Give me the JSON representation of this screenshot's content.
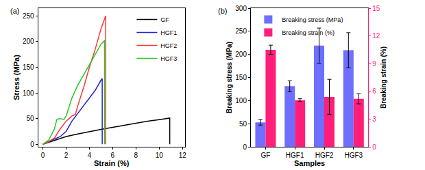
{
  "chart_data": [
    {
      "type": "line",
      "title": "(a)",
      "x_label": "Strain (%)",
      "y_label": "Stress (MPa)",
      "xlim": [
        -0.4,
        12.2
      ],
      "xticks": [
        0,
        2,
        4,
        6,
        8,
        10,
        12
      ],
      "ylim": [
        -5,
        265
      ],
      "yticks": [
        0,
        50,
        100,
        150,
        200,
        250
      ],
      "legend": "upper right",
      "series": [
        {
          "name": "GF",
          "color": "#000000",
          "x": [
            0,
            1,
            2,
            3,
            4,
            5,
            6,
            7,
            8,
            9,
            10,
            10.9,
            10.9
          ],
          "values": [
            0,
            8,
            15,
            20,
            25,
            29,
            33,
            37,
            41,
            45,
            48,
            51,
            0
          ]
        },
        {
          "name": "HGF1",
          "color": "#1f1fd6",
          "x": [
            0,
            0.8,
            1.5,
            2,
            2.5,
            3,
            3.5,
            4,
            4.5,
            5,
            5.1,
            5.1
          ],
          "values": [
            0,
            8,
            15,
            25,
            45,
            60,
            75,
            90,
            105,
            125,
            128,
            0
          ]
        },
        {
          "name": "HGF2",
          "color": "#ff3333",
          "x": [
            0,
            0.5,
            1,
            1.5,
            2,
            2.5,
            2.8,
            3,
            3.5,
            4,
            4.5,
            5,
            5.4,
            5.4
          ],
          "values": [
            0,
            5,
            12,
            30,
            45,
            55,
            58,
            75,
            110,
            150,
            185,
            225,
            250,
            0
          ]
        },
        {
          "name": "HGF3",
          "color": "#22cc22",
          "x": [
            0,
            0.5,
            1,
            1.2,
            1.5,
            1.8,
            2,
            2.5,
            3,
            3.5,
            4,
            4.5,
            5,
            5.3,
            5.3
          ],
          "values": [
            0,
            8,
            30,
            48,
            50,
            48,
            55,
            90,
            115,
            135,
            155,
            175,
            195,
            202,
            0
          ]
        }
      ]
    },
    {
      "type": "bar",
      "title": "(b)",
      "x_label": "Samples",
      "y_label": "Breaking stress (MPa)",
      "y2_label": "Breaking strain (%)",
      "categories": [
        "GF",
        "HGF1",
        "HGF2",
        "HGF3"
      ],
      "ylim": [
        0,
        300
      ],
      "yticks": [
        0,
        50,
        100,
        150,
        200,
        250,
        300
      ],
      "y2lim": [
        0,
        15
      ],
      "y2ticks": [
        0,
        3,
        6,
        9,
        12,
        15
      ],
      "legend": "upper left",
      "series": [
        {
          "name": "Breaking stress (MPa)",
          "color": "#6e6eff",
          "values": [
            53,
            131,
            219,
            209
          ],
          "errors": [
            6,
            12,
            38,
            38
          ]
        },
        {
          "name": "Breaking strain (%)",
          "color": "#ff1f7a",
          "axis": "y2",
          "values": [
            10.5,
            5.05,
            5.4,
            5.2
          ],
          "errors": [
            0.5,
            0.15,
            1.9,
            0.55
          ]
        }
      ]
    }
  ]
}
